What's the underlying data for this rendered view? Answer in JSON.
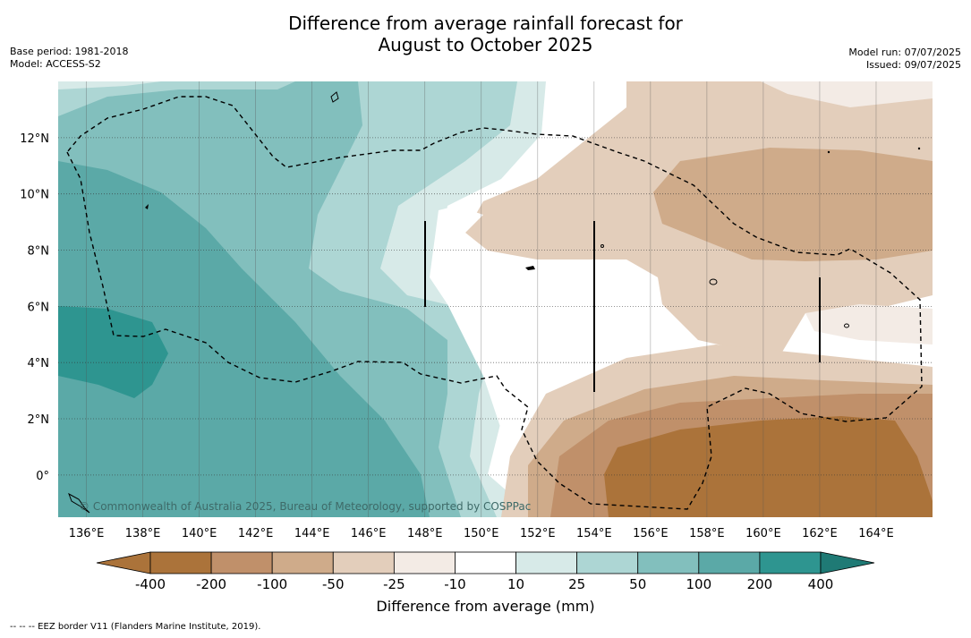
{
  "title_line1": "Difference from average rainfall forecast for",
  "title_line2": "August to October 2025",
  "base_period": "Base period: 1981-2018",
  "model": "Model: ACCESS-S2",
  "model_run": "Model run: 07/07/2025",
  "issued": "Issued: 09/07/2025",
  "copyright": "© Commonwealth of Australia 2025, Bureau of Meteorology, supported by COSPPac",
  "footer_note": "--  --  -- EEZ border V11 (Flanders Marine Institute, 2019).",
  "chart_data": {
    "type": "heatmap",
    "title": "Difference from average rainfall forecast for August to October 2025",
    "x_ticks": [
      "136°E",
      "138°E",
      "140°E",
      "142°E",
      "144°E",
      "146°E",
      "148°E",
      "150°E",
      "152°E",
      "154°E",
      "156°E",
      "158°E",
      "160°E",
      "162°E",
      "164°E"
    ],
    "y_ticks": [
      "12°N",
      "10°N",
      "8°N",
      "6°N",
      "4°N",
      "2°N",
      "0°"
    ],
    "xlim": [
      135,
      166
    ],
    "ylim": [
      -1.5,
      14
    ],
    "colorbar": {
      "label": "Difference from average (mm)",
      "ticks": [
        "-400",
        "-200",
        "-100",
        "-50",
        "-25",
        "-10",
        "10",
        "25",
        "50",
        "100",
        "200",
        "400"
      ],
      "colors": [
        "#ab733a",
        "#c0906a",
        "#cfab8a",
        "#e3cebb",
        "#f3ebe5",
        "#ffffff",
        "#d7eae8",
        "#add6d4",
        "#82bfbd",
        "#5ba9a7",
        "#2e9590",
        "#1f7a75"
      ]
    },
    "grid": true
  }
}
